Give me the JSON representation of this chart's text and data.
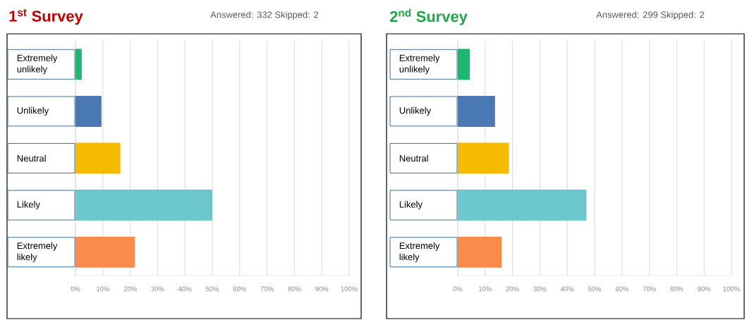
{
  "chart_data": [
    {
      "type": "bar",
      "orientation": "horizontal",
      "title": "1$^{st}$ Survey",
      "subtitle": "Answered: 332   Skipped: 2",
      "categories": [
        "Extremely unlikely",
        "Unlikely",
        "Neutral",
        "Likely",
        "Extremely likely"
      ],
      "values": [
        2.3,
        9.5,
        16.4,
        50,
        21.7
      ],
      "colors": [
        "#1db86f",
        "#4a78b4",
        "#f5bb00",
        "#6cc8cc",
        "#fb8a4d"
      ],
      "xlim": [
        0,
        100
      ],
      "xticks": [
        {
          "value": 0,
          "label": "0%"
        },
        {
          "value": 10,
          "label": "10%"
        },
        {
          "value": 20,
          "label": "20%"
        },
        {
          "value": 30,
          "label": "30%"
        },
        {
          "value": 40,
          "label": "40%"
        },
        {
          "value": 50,
          "label": "50%"
        },
        {
          "value": 60,
          "label": "60%"
        },
        {
          "value": 70,
          "label": "70%"
        },
        {
          "value": 80,
          "label": "80%"
        },
        {
          "value": 90,
          "label": "90%"
        },
        {
          "value": 100,
          "label": "100%"
        }
      ],
      "grid": "x"
    },
    {
      "type": "bar",
      "orientation": "horizontal",
      "title": "2$^{nd}$ Survey",
      "subtitle": "Answered: 299   Skipped: 2",
      "categories": [
        "Extremely unlikely",
        "Unlikely",
        "Neutral",
        "Likely",
        "Extremely likely"
      ],
      "values": [
        4.4,
        13.6,
        18.7,
        47,
        16
      ],
      "colors": [
        "#1db86f",
        "#4a78b4",
        "#f5bb00",
        "#6cc8cc",
        "#fb8a4d"
      ],
      "xlim": [
        0,
        100
      ],
      "xticks": [
        {
          "value": 0,
          "label": "0%"
        },
        {
          "value": 10,
          "label": "10%"
        },
        {
          "value": 20,
          "label": "20%"
        },
        {
          "value": 30,
          "label": "30%"
        },
        {
          "value": 40,
          "label": "40%"
        },
        {
          "value": 50,
          "label": "50%"
        },
        {
          "value": 60,
          "label": "60%"
        },
        {
          "value": 70,
          "label": "70%"
        },
        {
          "value": 80,
          "label": "80%"
        },
        {
          "value": 90,
          "label": "90%"
        },
        {
          "value": 100,
          "label": "100%"
        }
      ],
      "grid": "x"
    }
  ]
}
